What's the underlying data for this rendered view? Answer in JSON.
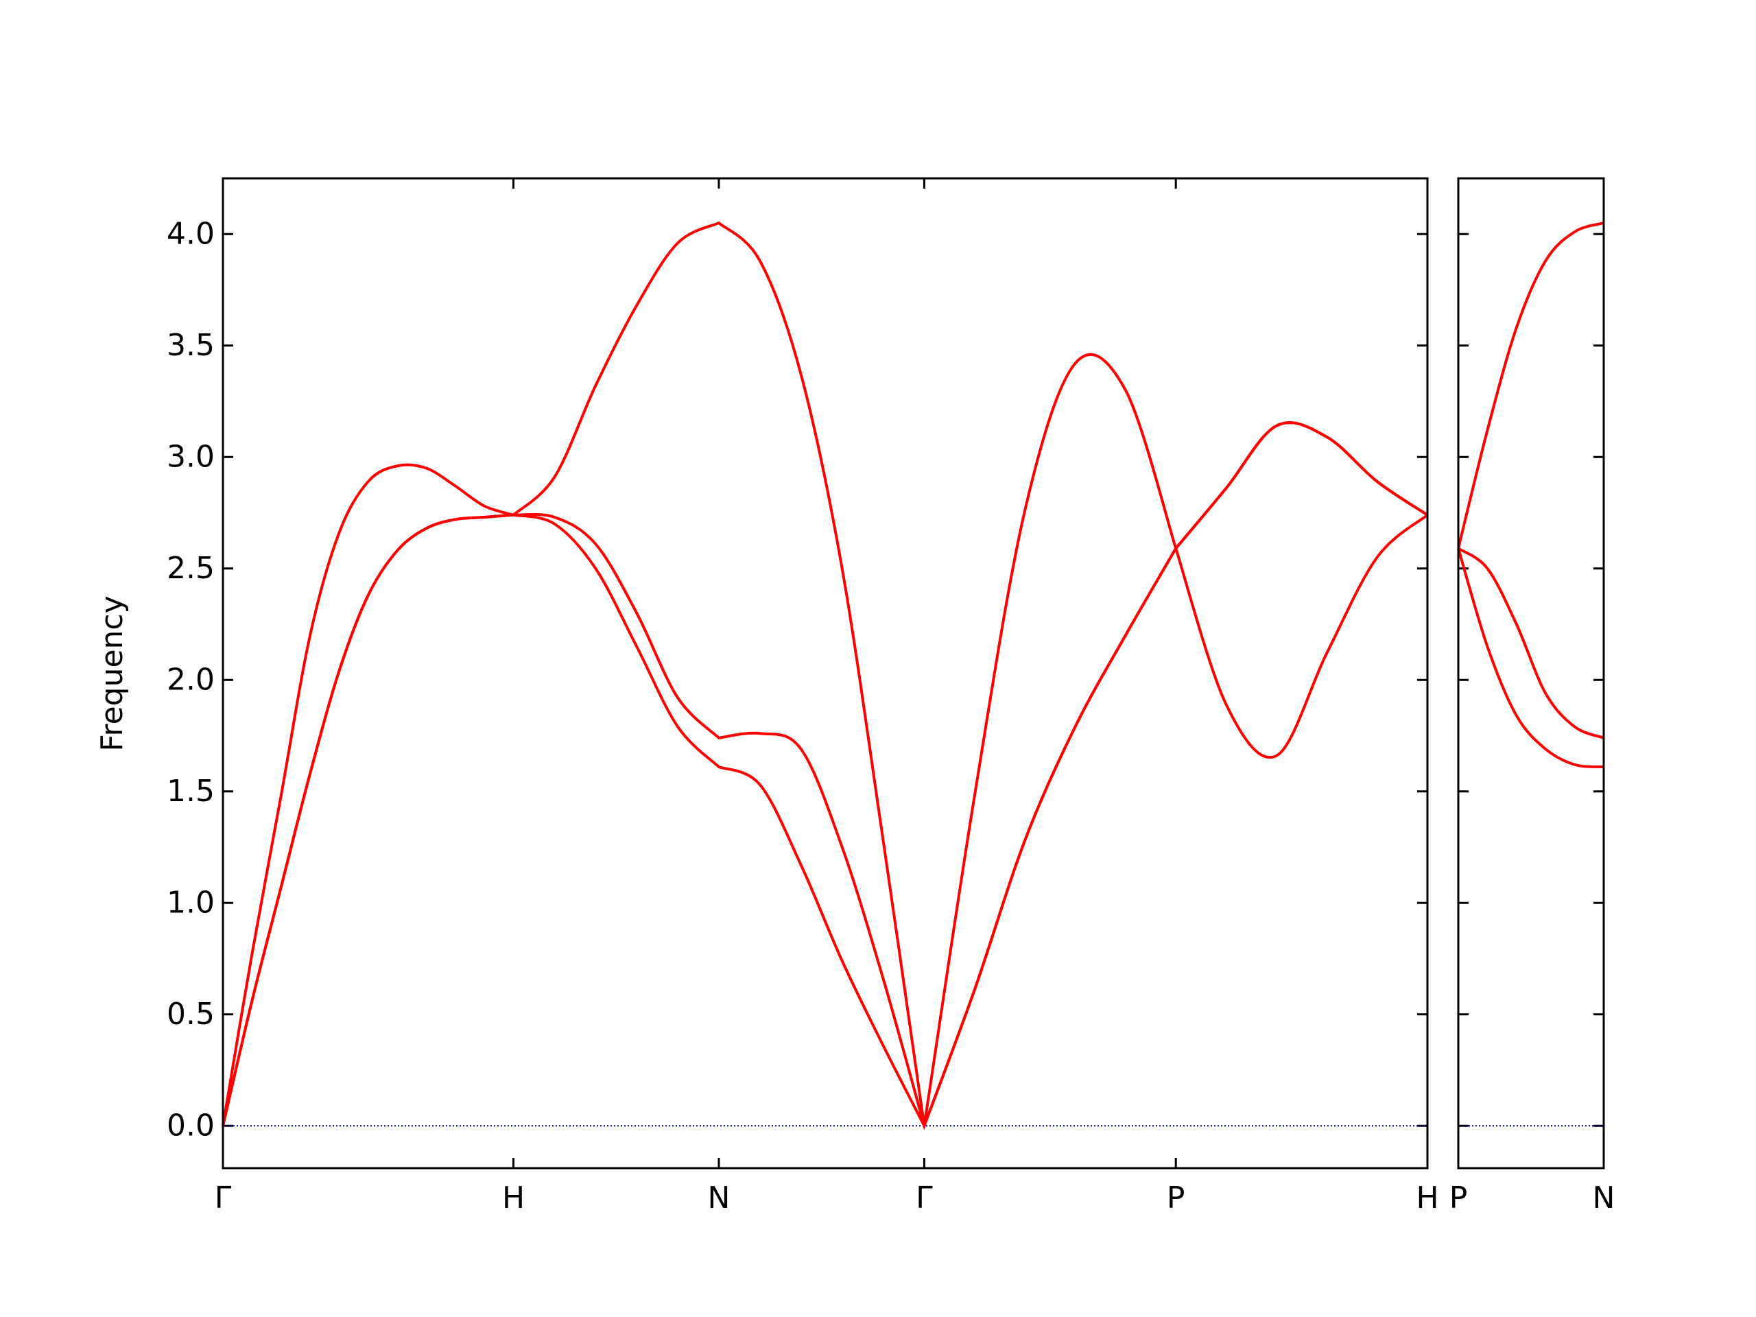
{
  "chart_data": [
    {
      "type": "line",
      "ylabel": "Frequency",
      "x": [
        0,
        0.1,
        0.2,
        0.3,
        0.4,
        0.5,
        0.6,
        0.7,
        0.8,
        0.9,
        1.0,
        1.1414,
        1.2828,
        1.4243,
        1.5657,
        1.7071,
        1.8485,
        1.9899,
        2.1314,
        2.2728,
        2.4142,
        2.5874,
        2.7606,
        2.9338,
        3.107,
        3.2802,
        3.4534,
        3.6266,
        3.7998,
        3.9731,
        4.1463
      ],
      "series": [
        {
          "color": "#ff0000",
          "values": [
            0,
            0.77,
            1.48,
            2.2,
            2.66,
            2.89,
            2.96,
            2.95,
            2.87,
            2.78,
            2.74,
            2.91,
            3.32,
            3.68,
            3.96,
            4.05,
            3.88,
            3.37,
            2.5,
            1.28,
            0,
            1.48,
            2.76,
            3.42,
            3.3,
            2.59,
            2.86,
            3.14,
            3.09,
            2.89,
            2.74
          ]
        },
        {
          "color": "#ff0000",
          "values": [
            0,
            0.56,
            1.07,
            1.58,
            2.04,
            2.38,
            2.58,
            2.68,
            2.72,
            2.73,
            2.74,
            2.73,
            2.61,
            2.3,
            1.92,
            1.74,
            1.76,
            1.69,
            1.25,
            0.66,
            0,
            0.61,
            1.28,
            1.79,
            2.2,
            2.59,
            2.86,
            3.14,
            3.09,
            2.89,
            2.74
          ]
        },
        {
          "color": "#ff0000",
          "values": [
            0,
            0.56,
            1.07,
            1.58,
            2.04,
            2.38,
            2.58,
            2.68,
            2.72,
            2.73,
            2.74,
            2.7,
            2.5,
            2.15,
            1.79,
            1.61,
            1.53,
            1.17,
            0.74,
            0.36,
            0,
            0.61,
            1.28,
            1.79,
            2.2,
            2.59,
            1.89,
            1.66,
            2.12,
            2.55,
            2.74
          ]
        }
      ],
      "xlim": [
        0,
        4.1463
      ],
      "xticks": [
        {
          "value": 0,
          "label": "Γ"
        },
        {
          "value": 1.0,
          "label": "H"
        },
        {
          "value": 1.7071,
          "label": "N"
        },
        {
          "value": 2.4142,
          "label": "Γ"
        },
        {
          "value": 3.2802,
          "label": "P"
        },
        {
          "value": 4.1463,
          "label": "H"
        }
      ],
      "ylim": [
        -0.19,
        4.25
      ],
      "yticks": [
        {
          "value": 0,
          "label": "0.0"
        },
        {
          "value": 0.5,
          "label": "0.5"
        },
        {
          "value": 1,
          "label": "1.0"
        },
        {
          "value": 1.5,
          "label": "1.5"
        },
        {
          "value": 2,
          "label": "2.0"
        },
        {
          "value": 2.5,
          "label": "2.5"
        },
        {
          "value": 3,
          "label": "3.0"
        },
        {
          "value": 3.5,
          "label": "3.5"
        },
        {
          "value": 4,
          "label": "4.0"
        }
      ],
      "ytick_labels": true,
      "hline": {
        "value": 0,
        "color": "#00008b"
      }
    },
    {
      "type": "line",
      "x": [
        0,
        0.1,
        0.2,
        0.3,
        0.4,
        0.5
      ],
      "series": [
        {
          "color": "#ff0000",
          "values": [
            2.59,
            3.12,
            3.58,
            3.88,
            4.01,
            4.05
          ]
        },
        {
          "color": "#ff0000",
          "values": [
            2.59,
            2.5,
            2.25,
            1.94,
            1.79,
            1.74
          ]
        },
        {
          "color": "#ff0000",
          "values": [
            2.59,
            2.15,
            1.84,
            1.69,
            1.62,
            1.61
          ]
        }
      ],
      "xlim": [
        0,
        0.5
      ],
      "xticks": [
        {
          "value": 0,
          "label": "P"
        },
        {
          "value": 0.5,
          "label": "N"
        }
      ],
      "ylim": [
        -0.19,
        4.25
      ],
      "yticks": [
        0,
        0.5,
        1,
        1.5,
        2,
        2.5,
        3,
        3.5,
        4
      ],
      "ytick_labels": false,
      "hline": {
        "value": 0,
        "color": "#00008b"
      }
    }
  ]
}
